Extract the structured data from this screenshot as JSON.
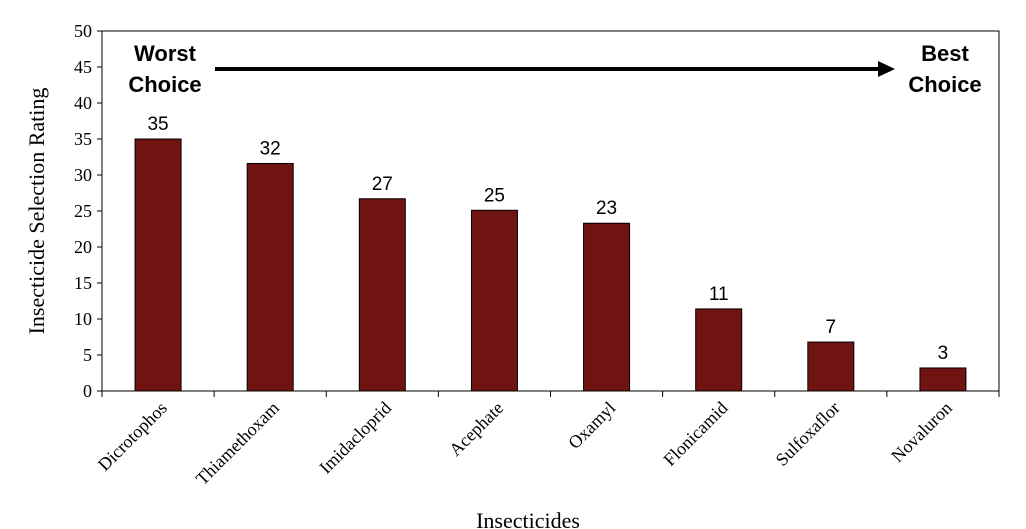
{
  "chart_data": {
    "type": "bar",
    "categories": [
      "Dicrotophos",
      "Thiamethoxam",
      "Imidacloprid",
      "Acephate",
      "Oxamyl",
      "Flonicamid",
      "Sulfoxaflor",
      "Novaluron"
    ],
    "values": [
      35,
      31.6,
      26.7,
      25.1,
      23.3,
      11.4,
      6.8,
      3.2
    ],
    "data_labels": [
      "35",
      "32",
      "27",
      "25",
      "23",
      "11",
      "7",
      "3"
    ],
    "title": "",
    "xlabel": "Insecticides",
    "ylabel": "Insecticide Selection Rating",
    "ylim": [
      0,
      50
    ],
    "yticks": [
      "0",
      "5",
      "10",
      "15",
      "20",
      "25",
      "30",
      "35",
      "40",
      "45",
      "50"
    ],
    "grid": false,
    "bar_color": "#701412",
    "annotations": {
      "left_line1": "Worst",
      "left_line2": "Choice",
      "right_line1": "Best",
      "right_line2": "Choice"
    }
  }
}
